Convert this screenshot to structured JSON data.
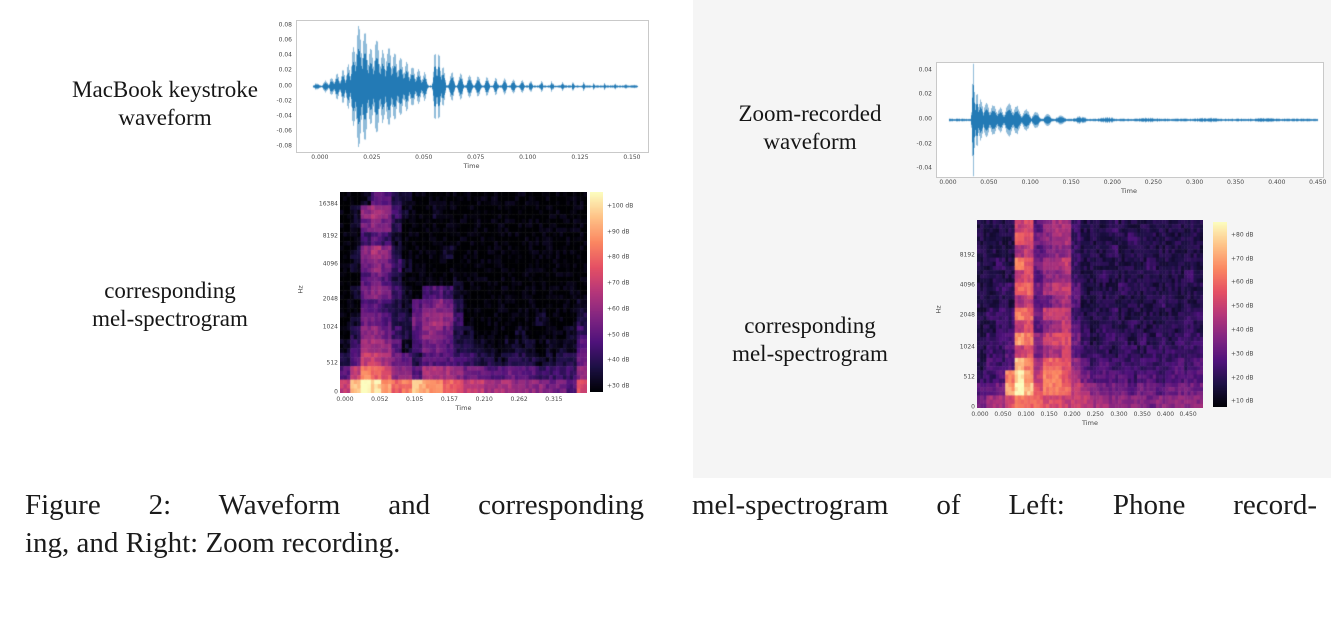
{
  "caption": {
    "line1": "Figure 2: Waveform and corresponding mel-spectrogram of Left: Phone record-",
    "line2": "ing, and Right: Zoom recording."
  },
  "panels": {
    "left_waveform": {
      "label_line1": "MacBook keystroke",
      "label_line2": "waveform",
      "xlabel": "Time",
      "yticks": [
        "0.08",
        "0.06",
        "0.04",
        "0.02",
        "0.00",
        "-0.02",
        "-0.04",
        "-0.06",
        "-0.08"
      ],
      "xticks": [
        "0.000",
        "0.025",
        "0.050",
        "0.075",
        "0.100",
        "0.125",
        "0.150"
      ],
      "color": "#1f77b4",
      "baseline": 0.016,
      "span": [
        0.045,
        0.97
      ],
      "seed": 11,
      "blobs": [
        [
          0.055,
          0.008,
          0.05
        ],
        [
          0.08,
          0.007,
          0.09
        ],
        [
          0.097,
          0.007,
          0.13
        ],
        [
          0.113,
          0.007,
          0.2
        ],
        [
          0.13,
          0.007,
          0.26
        ],
        [
          0.145,
          0.007,
          0.33
        ],
        [
          0.16,
          0.008,
          0.62
        ],
        [
          0.175,
          0.009,
          1.0
        ],
        [
          0.192,
          0.009,
          0.82
        ],
        [
          0.209,
          0.009,
          0.64
        ],
        [
          0.226,
          0.009,
          0.74
        ],
        [
          0.243,
          0.009,
          0.58
        ],
        [
          0.26,
          0.009,
          0.62
        ],
        [
          0.277,
          0.009,
          0.5
        ],
        [
          0.294,
          0.009,
          0.44
        ],
        [
          0.311,
          0.008,
          0.38
        ],
        [
          0.328,
          0.008,
          0.32
        ],
        [
          0.345,
          0.008,
          0.27
        ],
        [
          0.362,
          0.007,
          0.22
        ],
        [
          0.392,
          0.005,
          0.56
        ],
        [
          0.403,
          0.005,
          0.54
        ],
        [
          0.415,
          0.006,
          0.32
        ],
        [
          0.44,
          0.007,
          0.22
        ],
        [
          0.465,
          0.007,
          0.2
        ],
        [
          0.49,
          0.007,
          0.18
        ],
        [
          0.515,
          0.007,
          0.16
        ],
        [
          0.54,
          0.006,
          0.15
        ],
        [
          0.565,
          0.006,
          0.13
        ],
        [
          0.59,
          0.006,
          0.12
        ],
        [
          0.615,
          0.006,
          0.11
        ],
        [
          0.64,
          0.006,
          0.1
        ],
        [
          0.665,
          0.005,
          0.09
        ],
        [
          0.695,
          0.005,
          0.08
        ],
        [
          0.725,
          0.005,
          0.07
        ],
        [
          0.755,
          0.005,
          0.065
        ],
        [
          0.785,
          0.004,
          0.06
        ],
        [
          0.815,
          0.004,
          0.055
        ],
        [
          0.845,
          0.004,
          0.05
        ],
        [
          0.875,
          0.004,
          0.045
        ],
        [
          0.905,
          0.004,
          0.04
        ],
        [
          0.935,
          0.004,
          0.035
        ],
        [
          0.96,
          0.004,
          0.03
        ]
      ]
    },
    "right_waveform": {
      "label_line1": "Zoom-recorded",
      "label_line2": "waveform",
      "xlabel": "Time",
      "yticks": [
        "0.04",
        "0.02",
        "0.00",
        "-0.02",
        "-0.04"
      ],
      "xticks": [
        "0.000",
        "0.050",
        "0.100",
        "0.150",
        "0.200",
        "0.250",
        "0.300",
        "0.350",
        "0.400",
        "0.450"
      ],
      "color": "#1f77b4",
      "baseline": 0.022,
      "span": [
        0.03,
        0.985
      ],
      "seed": 29,
      "blobs": [
        [
          0.093,
          0.0035,
          1.0
        ],
        [
          0.102,
          0.005,
          0.5
        ],
        [
          0.112,
          0.007,
          0.36
        ],
        [
          0.127,
          0.009,
          0.3
        ],
        [
          0.145,
          0.01,
          0.27
        ],
        [
          0.163,
          0.009,
          0.22
        ],
        [
          0.185,
          0.011,
          0.29
        ],
        [
          0.205,
          0.011,
          0.25
        ],
        [
          0.23,
          0.011,
          0.19
        ],
        [
          0.255,
          0.01,
          0.15
        ],
        [
          0.285,
          0.01,
          0.11
        ],
        [
          0.32,
          0.013,
          0.08
        ],
        [
          0.37,
          0.02,
          0.055
        ],
        [
          0.44,
          0.03,
          0.045
        ],
        [
          0.55,
          0.05,
          0.035
        ],
        [
          0.7,
          0.06,
          0.032
        ],
        [
          0.85,
          0.06,
          0.03
        ]
      ]
    },
    "left_spectrogram": {
      "label_line1": "corresponding",
      "label_line2": "mel-spectrogram",
      "xlabel": "Time",
      "ylabel": "Hz",
      "yticks": [
        "16384",
        "8192",
        "4096",
        "2048",
        "1024",
        "512",
        "0"
      ],
      "xticks": [
        "0.000",
        "0.052",
        "0.105",
        "0.157",
        "0.210",
        "0.262",
        "0.315"
      ],
      "colorbar_ticks": [
        "+100 dB",
        "+90 dB",
        "+80 dB",
        "+70 dB",
        "+60 dB",
        "+50 dB",
        "+40 dB",
        "+30 dB"
      ],
      "seed": 5,
      "grid": [
        "001442100000000000000000",
        "016763100100000000000000",
        "015652000000000000000000",
        "003431000000000000000000",
        "016762000010000000000000",
        "015653100000000000000000",
        "004542000001000000000000",
        "015653103431000000000000",
        "004432145652000000000001",
        "015542256763000000010002",
        "026653246652100001000013",
        "137764135542211011101114",
        "248875424443322122211225",
        "48ba96647776554454433336",
        "8dfecabdcba9887776665549"
      ]
    },
    "right_spectrogram": {
      "label_line1": "corresponding",
      "label_line2": "mel-spectrogram",
      "xlabel": "Time",
      "ylabel": "Hz",
      "yticks": [
        "8192",
        "4096",
        "2048",
        "1024",
        "512",
        "0"
      ],
      "xticks": [
        "0.000",
        "0.050",
        "0.100",
        "0.150",
        "0.200",
        "0.250",
        "0.300",
        "0.350",
        "0.400",
        "0.450"
      ],
      "colorbar_ticks": [
        "+80 dB",
        "+70 dB",
        "+60 dB",
        "+50 dB",
        "+40 dB",
        "+30 dB",
        "+20 dB",
        "+10 dB"
      ],
      "seed": 17,
      "grid": [
        "222289467732223222222222",
        "2222a9567732222232222222",
        "222278456632223222222222",
        "2232b9577832222222322222",
        "222289466732232222222232",
        "2233aa578842222322222222",
        "222278456742222222232222",
        "2333ba588832223222222233",
        "223389467843232232223232",
        "2334cb689953233323232333",
        "233489577943332332333333",
        "2434db7aa964343333333434",
        "334bec8bb975444434434444",
        "445cfd9bba87655545545555",
        "5779baa99888776666566666"
      ]
    }
  }
}
